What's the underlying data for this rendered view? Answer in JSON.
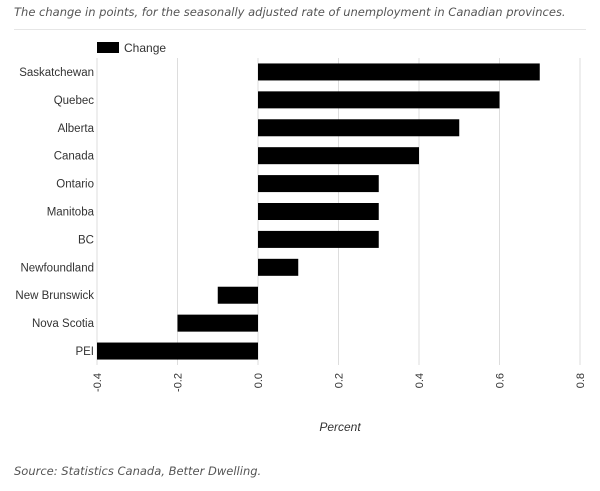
{
  "caption": "The change in points, for the seasonally adjusted rate of unemployment in Canadian provinces.",
  "source": "Source: Statistics Canada, Better Dwelling.",
  "colors": {
    "bar": "#000000",
    "grid": "#dddddd",
    "text": "#333333"
  },
  "chart_data": {
    "type": "bar",
    "orientation": "horizontal",
    "categories": [
      "Saskatchewan",
      "Quebec",
      "Alberta",
      "Canada",
      "Ontario",
      "Manitoba",
      "BC",
      "Newfoundland",
      "New Brunswick",
      "Nova Scotia",
      "PEI"
    ],
    "series": [
      {
        "name": "Change",
        "values": [
          0.7,
          0.6,
          0.5,
          0.4,
          0.3,
          0.3,
          0.3,
          0.1,
          -0.1,
          -0.2,
          -0.4
        ]
      }
    ],
    "xlabel": "Percent",
    "ylabel": "",
    "xlim": [
      -0.4,
      0.8
    ],
    "xticks": [
      "-0.4",
      "-0.2",
      "0.0",
      "0.2",
      "0.4",
      "0.6",
      "0.8"
    ],
    "tick_values": [
      -0.4,
      -0.2,
      0.0,
      0.2,
      0.4,
      0.6,
      0.8
    ],
    "grid": true,
    "legend": "top-left"
  }
}
